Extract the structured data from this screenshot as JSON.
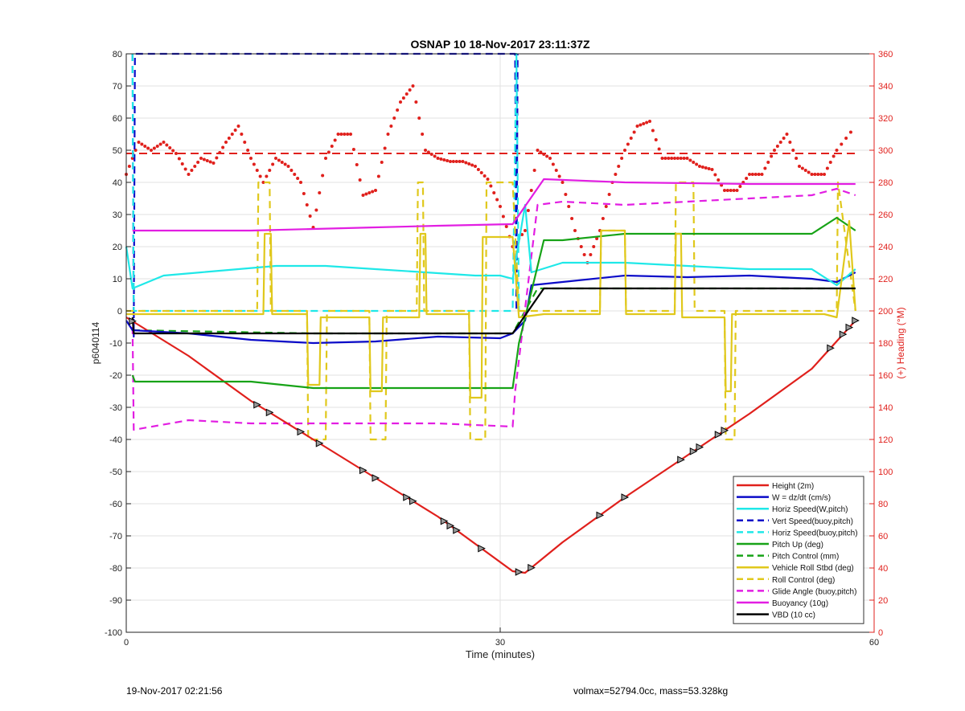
{
  "chart_data": {
    "type": "line",
    "title": "OSNAP 10 18-Nov-2017 23:11:37Z",
    "xlabel": "Time (minutes)",
    "ylabel": "p6040114",
    "y2label": "(+) Heading (°M)",
    "xlim": [
      0,
      60
    ],
    "ylim": [
      -100,
      80
    ],
    "y2lim": [
      0,
      360
    ],
    "xticks": [
      "0",
      "30",
      "60"
    ],
    "yticks": [
      "80",
      "70",
      "60",
      "50",
      "40",
      "30",
      "20",
      "10",
      "0",
      "-10",
      "-20",
      "-30",
      "-40",
      "-50",
      "-60",
      "-70",
      "-80",
      "-90",
      "-100"
    ],
    "y2ticks": [
      "360",
      "340",
      "320",
      "300",
      "280",
      "260",
      "240",
      "220",
      "200",
      "180",
      "160",
      "140",
      "120",
      "100",
      "80",
      "60",
      "40",
      "20",
      "0"
    ],
    "grid": true,
    "legend_position": "bottom-right",
    "colors": {
      "red": "#e0201c",
      "blue": "#0b0bc8",
      "cyan": "#1fe8e8",
      "green": "#17a317",
      "yellow": "#e0c81c",
      "magenta": "#e21ee2",
      "black": "#000000"
    },
    "series": [
      {
        "name": "Height (2m)",
        "color": "red",
        "style": "solid",
        "x": [
          0,
          5,
          10,
          15,
          20,
          25,
          31,
          32,
          35,
          40,
          45,
          50,
          55,
          58.5
        ],
        "y": [
          -2,
          -14,
          -28,
          -40,
          -52,
          -64,
          -81,
          -81.5,
          -72,
          -58,
          -45,
          -32,
          -18,
          -3
        ]
      },
      {
        "name": "W = dz/dt (cm/s)",
        "color": "blue",
        "style": "solid",
        "x": [
          0,
          0.5,
          5,
          10,
          15,
          20,
          25,
          30,
          31,
          32,
          32.5,
          35,
          40,
          45,
          50,
          55,
          57,
          58.5
        ],
        "y": [
          -3,
          -6,
          -7,
          -9,
          -10,
          -9.5,
          -8,
          -8.5,
          -7,
          -3,
          8,
          9,
          11,
          10.5,
          11,
          10,
          9,
          12
        ]
      },
      {
        "name": "Horiz Speed(W,pitch)",
        "color": "cyan",
        "style": "solid",
        "x": [
          0,
          0.5,
          3,
          6,
          9,
          12,
          16,
          20,
          24,
          28,
          30,
          31,
          32,
          32.5,
          35,
          40,
          45,
          50,
          55,
          57,
          58.5
        ],
        "y": [
          20,
          7,
          11,
          12,
          13,
          14,
          14,
          13,
          12,
          11,
          11,
          10,
          33,
          12,
          15,
          15,
          14,
          13,
          13,
          8,
          13
        ]
      },
      {
        "name": "Vert Speed(buoy,pitch)",
        "color": "blue",
        "style": "dashed",
        "x": [
          0.5,
          0.6,
          0.7,
          31.2,
          31.3,
          31.4
        ],
        "y": [
          80,
          -8,
          80,
          80,
          0,
          80
        ]
      },
      {
        "name": "Horiz Speed(buoy,pitch)",
        "color": "cyan",
        "style": "dashed",
        "x": [
          0.5,
          0.6,
          31,
          31.3,
          31.5
        ],
        "y": [
          80,
          0,
          0,
          80,
          0
        ]
      },
      {
        "name": "Pitch Up (deg)",
        "color": "green",
        "style": "solid",
        "x": [
          0.5,
          0.7,
          5,
          10,
          15,
          20,
          25,
          31,
          31.5,
          33.5,
          35,
          40,
          45,
          50,
          55,
          57,
          58.5
        ],
        "y": [
          -20,
          -22,
          -22,
          -22,
          -24,
          -24,
          -24,
          -24,
          -10,
          22,
          22,
          24,
          24,
          24,
          24,
          29,
          25
        ]
      },
      {
        "name": "Pitch Control (mm)",
        "color": "green",
        "style": "dashed",
        "x": [
          0.5,
          15,
          20,
          25,
          31,
          33,
          40,
          50,
          58.5
        ],
        "y": [
          -6,
          -7,
          -7,
          -7,
          -7,
          7,
          7,
          7,
          7
        ]
      },
      {
        "name": "Vehicle Roll Stbd (deg)",
        "color": "yellow",
        "style": "solid",
        "x": [
          0,
          11,
          11.1,
          11.6,
          11.7,
          14.5,
          14.6,
          15.5,
          15.6,
          19.5,
          19.6,
          20.5,
          20.6,
          23.5,
          23.6,
          24,
          24.1,
          27.5,
          27.6,
          28.5,
          28.6,
          31,
          31.5,
          33.5,
          38,
          38.1,
          40,
          40.1,
          44,
          44.1,
          44.5,
          44.6,
          48,
          48.1,
          48.5,
          48.6,
          56,
          57,
          58,
          58.5
        ],
        "y": [
          -1,
          -1,
          24,
          24,
          -1,
          -1,
          -23,
          -23,
          -2,
          -2,
          -25,
          -25,
          -2,
          -2,
          24,
          24,
          -1,
          -1,
          -27,
          -27,
          23,
          23,
          -2,
          -1,
          -1,
          25,
          25,
          -1,
          -1,
          24,
          24,
          -2,
          -2,
          -25,
          -25,
          -1,
          -1,
          -2,
          28,
          0
        ]
      },
      {
        "name": "Roll Control (deg)",
        "color": "yellow",
        "style": "dashed",
        "x": [
          0,
          10.5,
          10.6,
          11.5,
          11.6,
          14.5,
          14.6,
          16,
          16.1,
          19.5,
          19.6,
          20.8,
          20.9,
          23.3,
          23.4,
          23.8,
          23.9,
          27.5,
          27.6,
          28.8,
          28.9,
          31,
          31.5,
          33.5,
          38,
          38.1,
          40,
          40.1,
          44,
          44.1,
          45.5,
          45.6,
          48,
          48.1,
          48.8,
          48.9,
          57,
          57.1,
          58.5
        ],
        "y": [
          0,
          0,
          40,
          40,
          0,
          0,
          -40,
          -40,
          0,
          0,
          -40,
          -40,
          0,
          0,
          40,
          40,
          0,
          0,
          -40,
          -40,
          40,
          40,
          0,
          0,
          0,
          25,
          25,
          0,
          0,
          40,
          40,
          0,
          0,
          -40,
          -40,
          0,
          0,
          40,
          0
        ]
      },
      {
        "name": "Glide Angle (buoy,pitch)",
        "color": "magenta",
        "style": "dashed",
        "x": [
          0.5,
          0.6,
          5,
          10,
          15,
          20,
          25,
          31,
          31.2,
          33,
          35,
          40,
          45,
          50,
          55,
          57,
          58.5
        ],
        "y": [
          -5,
          -37,
          -34,
          -35,
          -35,
          -35,
          -35,
          -36,
          -25,
          33,
          34,
          33,
          34,
          35,
          36,
          38,
          36
        ]
      },
      {
        "name": "Buoyancy (10g)",
        "color": "magenta",
        "style": "solid",
        "x": [
          0.5,
          10,
          20,
          25,
          31,
          33.5,
          40,
          50,
          58.5
        ],
        "y": [
          25,
          25,
          26,
          26.5,
          27,
          41,
          40,
          39.5,
          39.5
        ]
      },
      {
        "name": "VBD (10 cc)",
        "color": "black",
        "style": "solid",
        "x": [
          0.5,
          0.6,
          10,
          20,
          31,
          33.5,
          40,
          50,
          58.5
        ],
        "y": [
          -2,
          -7,
          -7,
          -7,
          -7,
          7,
          7,
          7,
          7
        ]
      }
    ],
    "heading_series": {
      "color": "red",
      "style": "dotted",
      "axis": "right",
      "x": [
        0,
        1,
        2,
        3,
        4,
        5,
        6,
        7,
        8,
        9,
        10,
        11,
        12,
        13,
        14,
        15,
        16,
        17,
        18,
        19,
        20,
        21,
        22,
        23,
        24,
        25,
        26,
        27,
        28,
        29,
        30,
        31,
        32,
        33,
        34,
        35,
        36,
        37,
        38,
        39,
        40,
        41,
        42,
        43,
        44,
        45,
        46,
        47,
        48,
        49,
        50,
        51,
        52,
        53,
        54,
        55,
        56,
        57,
        58.5
      ],
      "y": [
        285,
        305,
        300,
        305,
        298,
        285,
        295,
        292,
        305,
        315,
        295,
        280,
        295,
        290,
        280,
        252,
        295,
        310,
        310,
        272,
        275,
        310,
        330,
        340,
        300,
        295,
        293,
        293,
        290,
        282,
        265,
        240,
        250,
        300,
        295,
        280,
        250,
        230,
        250,
        280,
        300,
        315,
        318,
        295,
        295,
        295,
        290,
        288,
        275,
        275,
        285,
        285,
        300,
        310,
        290,
        285,
        285,
        300,
        315
      ],
      "mean": 298
    }
  },
  "footer": {
    "left": "19-Nov-2017 02:21:56",
    "right": "volmax=52794.0cc, mass=53.328kg"
  }
}
